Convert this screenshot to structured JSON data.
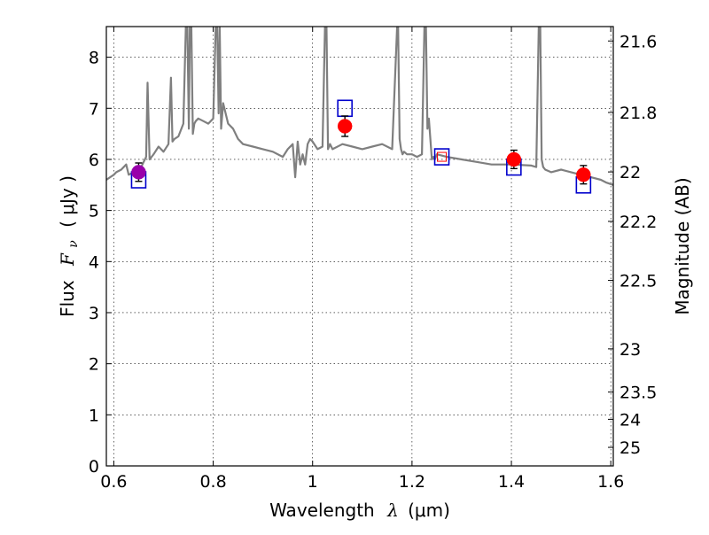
{
  "chart_data": {
    "type": "line",
    "x_axis": {
      "label_prefix": "Wavelength",
      "label_symbol": "λ",
      "label_unit": "(μm)",
      "xlim": [
        0.585,
        1.605
      ],
      "ticks": [
        0.6,
        0.8,
        1.0,
        1.2,
        1.4,
        1.6
      ],
      "tick_labels": [
        "0.6",
        "0.8",
        "1",
        "1.2",
        "1.4",
        "1.6"
      ]
    },
    "y_axis_left": {
      "label_prefix": "Flux",
      "label_symbol": "F",
      "label_subscript": "ν",
      "label_unit": "( μJy )",
      "ylim": [
        0,
        8.6
      ],
      "ticks": [
        0,
        1,
        2,
        3,
        4,
        5,
        6,
        7,
        8
      ],
      "tick_labels": [
        "0",
        "1",
        "2",
        "3",
        "4",
        "5",
        "6",
        "7",
        "8"
      ]
    },
    "y_axis_right": {
      "label": "Magnitude (AB)",
      "ticks": [
        21.6,
        21.8,
        22.0,
        22.2,
        22.5,
        23.0,
        23.5,
        24.0,
        25.0
      ],
      "tick_labels": [
        "21.6",
        "21.8",
        "22",
        "22.2",
        "22.5",
        "23",
        "23.5",
        "24",
        "25"
      ]
    },
    "grid": true,
    "series": [
      {
        "kind": "spectrum",
        "color": "#7f7f7f",
        "x": [
          0.585,
          0.6,
          0.605,
          0.615,
          0.625,
          0.63,
          0.64,
          0.655,
          0.66,
          0.665,
          0.668,
          0.672,
          0.68,
          0.69,
          0.7,
          0.71,
          0.715,
          0.718,
          0.722,
          0.73,
          0.74,
          0.745,
          0.748,
          0.751,
          0.753,
          0.756,
          0.759,
          0.762,
          0.765,
          0.77,
          0.78,
          0.79,
          0.8,
          0.805,
          0.808,
          0.811,
          0.813,
          0.816,
          0.82,
          0.83,
          0.84,
          0.85,
          0.86,
          0.88,
          0.9,
          0.92,
          0.94,
          0.95,
          0.96,
          0.965,
          0.97,
          0.975,
          0.98,
          0.985,
          0.99,
          0.995,
          1.0,
          1.01,
          1.02,
          1.025,
          1.028,
          1.031,
          1.035,
          1.04,
          1.06,
          1.08,
          1.1,
          1.12,
          1.14,
          1.16,
          1.17,
          1.172,
          1.175,
          1.178,
          1.181,
          1.184,
          1.19,
          1.2,
          1.21,
          1.22,
          1.225,
          1.228,
          1.231,
          1.234,
          1.237,
          1.24,
          1.243,
          1.246,
          1.25,
          1.27,
          1.3,
          1.33,
          1.36,
          1.4,
          1.44,
          1.45,
          1.455,
          1.458,
          1.461,
          1.464,
          1.468,
          1.48,
          1.5,
          1.52,
          1.54,
          1.56,
          1.58,
          1.59,
          1.605
        ],
        "y": [
          5.6,
          5.7,
          5.75,
          5.8,
          5.9,
          5.7,
          5.75,
          5.85,
          5.95,
          6.05,
          7.5,
          6.0,
          6.1,
          6.25,
          6.15,
          6.3,
          7.6,
          6.35,
          6.4,
          6.45,
          6.7,
          8.6,
          8.6,
          6.6,
          8.6,
          8.6,
          6.5,
          6.7,
          6.75,
          6.8,
          6.75,
          6.7,
          6.8,
          8.6,
          8.6,
          6.9,
          8.6,
          6.6,
          7.1,
          6.7,
          6.6,
          6.4,
          6.3,
          6.25,
          6.2,
          6.15,
          6.05,
          6.2,
          6.3,
          5.65,
          6.35,
          5.9,
          6.1,
          5.9,
          6.3,
          6.4,
          6.35,
          6.2,
          6.25,
          8.6,
          8.6,
          6.2,
          6.3,
          6.2,
          6.3,
          6.25,
          6.2,
          6.25,
          6.3,
          6.2,
          8.6,
          8.6,
          6.4,
          6.2,
          6.1,
          6.15,
          6.1,
          6.1,
          6.05,
          6.1,
          8.6,
          8.6,
          6.6,
          6.8,
          6.4,
          6.0,
          6.05,
          6.0,
          6.1,
          6.05,
          6.0,
          5.95,
          5.9,
          5.9,
          5.88,
          5.85,
          8.6,
          8.6,
          6.0,
          5.85,
          5.8,
          5.75,
          5.8,
          5.75,
          5.7,
          5.65,
          5.6,
          5.55,
          5.5
        ]
      },
      {
        "kind": "model_points",
        "marker": "open-square",
        "color": "#0000cc",
        "x": [
          0.65,
          1.065,
          1.26,
          1.405,
          1.545
        ],
        "y": [
          5.6,
          7.0,
          6.05,
          5.85,
          5.5
        ]
      },
      {
        "kind": "observed_points",
        "marker": "filled-circle",
        "x": [
          0.65,
          1.065,
          1.26,
          1.405,
          1.545
        ],
        "y": [
          5.75,
          6.65,
          6.05,
          6.0,
          5.7
        ],
        "yerr": [
          0.18,
          0.2,
          0.0,
          0.18,
          0.18
        ],
        "colors": [
          "#9900aa",
          "#ff0000",
          "#ff0000",
          "#ff0000",
          "#ff0000"
        ],
        "hollow": [
          false,
          false,
          true,
          false,
          false
        ]
      }
    ]
  }
}
